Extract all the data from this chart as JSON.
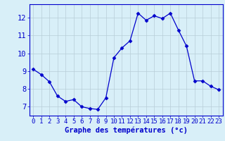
{
  "hours": [
    0,
    1,
    2,
    3,
    4,
    5,
    6,
    7,
    8,
    9,
    10,
    11,
    12,
    13,
    14,
    15,
    16,
    17,
    18,
    19,
    20,
    21,
    22,
    23
  ],
  "temperatures": [
    9.1,
    8.8,
    8.4,
    7.6,
    7.3,
    7.4,
    7.0,
    6.9,
    6.85,
    7.5,
    9.75,
    10.3,
    10.7,
    12.25,
    11.85,
    12.1,
    11.95,
    12.25,
    11.3,
    10.4,
    8.45,
    8.45,
    8.15,
    7.95
  ],
  "line_color": "#0000cc",
  "marker": "D",
  "marker_size": 2.5,
  "bg_color": "#d8eff8",
  "grid_color": "#b8cdd8",
  "axis_color": "#0000cc",
  "tick_label_color": "#0000cc",
  "xlabel": "Graphe des températures (°c)",
  "xlabel_fontsize": 7.5,
  "xlabel_color": "#0000cc",
  "tick_fontsize": 6.5,
  "ytick_fontsize": 7.5,
  "ylabel_ticks": [
    7,
    8,
    9,
    10,
    11,
    12
  ],
  "xlim": [
    -0.5,
    23.5
  ],
  "ylim": [
    6.5,
    12.75
  ]
}
